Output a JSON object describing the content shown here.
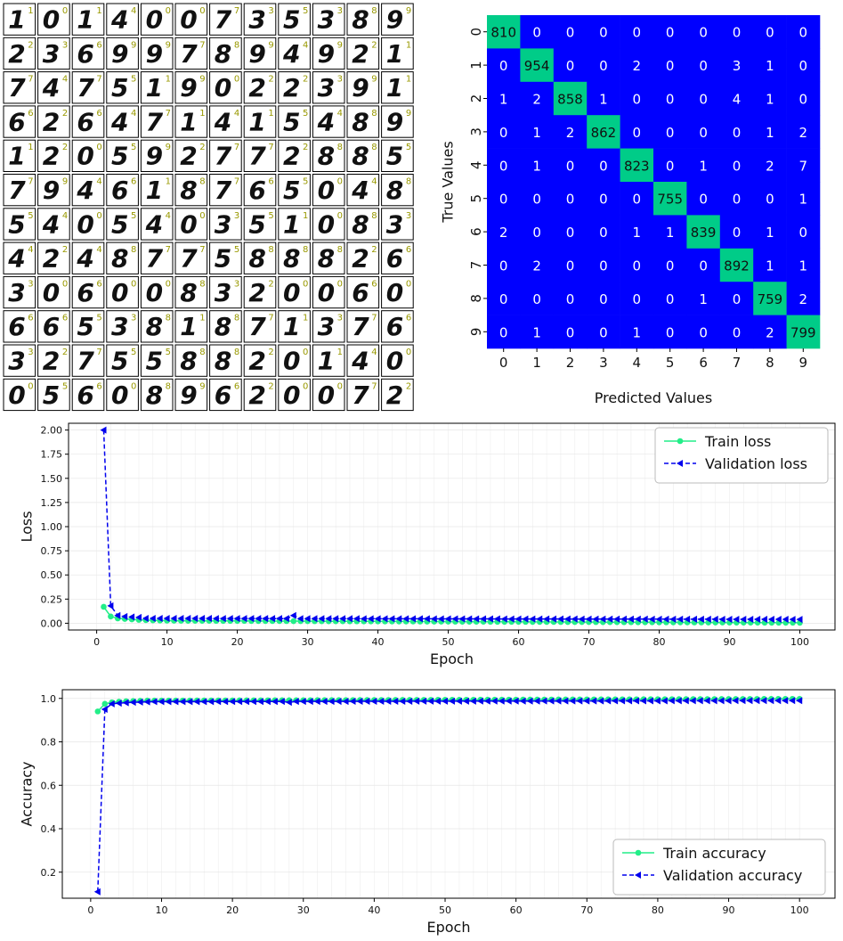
{
  "mnist_samples": {
    "rows": [
      [
        [
          1,
          1
        ],
        [
          0,
          0
        ],
        [
          1,
          1
        ],
        [
          4,
          4
        ],
        [
          0,
          0
        ],
        [
          0,
          0
        ],
        [
          7,
          7
        ],
        [
          3,
          3
        ],
        [
          5,
          5
        ],
        [
          3,
          3
        ],
        [
          8,
          8
        ],
        [
          9,
          9
        ]
      ],
      [
        [
          2,
          2
        ],
        [
          3,
          3
        ],
        [
          6,
          6
        ],
        [
          9,
          9
        ],
        [
          9,
          9
        ],
        [
          7,
          7
        ],
        [
          8,
          8
        ],
        [
          9,
          9
        ],
        [
          4,
          4
        ],
        [
          9,
          9
        ],
        [
          2,
          2
        ],
        [
          1,
          1
        ]
      ],
      [
        [
          7,
          7
        ],
        [
          4,
          4
        ],
        [
          7,
          7
        ],
        [
          5,
          5
        ],
        [
          1,
          1
        ],
        [
          9,
          9
        ],
        [
          0,
          0
        ],
        [
          2,
          2
        ],
        [
          2,
          2
        ],
        [
          3,
          3
        ],
        [
          9,
          9
        ],
        [
          1,
          1
        ]
      ],
      [
        [
          6,
          6
        ],
        [
          2,
          2
        ],
        [
          6,
          6
        ],
        [
          4,
          4
        ],
        [
          7,
          7
        ],
        [
          1,
          1
        ],
        [
          4,
          4
        ],
        [
          1,
          1
        ],
        [
          5,
          5
        ],
        [
          4,
          4
        ],
        [
          8,
          8
        ],
        [
          9,
          9
        ]
      ],
      [
        [
          1,
          1
        ],
        [
          2,
          2
        ],
        [
          0,
          0
        ],
        [
          5,
          5
        ],
        [
          9,
          9
        ],
        [
          2,
          2
        ],
        [
          7,
          7
        ],
        [
          7,
          7
        ],
        [
          2,
          2
        ],
        [
          8,
          8
        ],
        [
          8,
          8
        ],
        [
          5,
          5
        ]
      ],
      [
        [
          7,
          7
        ],
        [
          9,
          9
        ],
        [
          4,
          4
        ],
        [
          6,
          6
        ],
        [
          1,
          1
        ],
        [
          8,
          8
        ],
        [
          7,
          7
        ],
        [
          6,
          6
        ],
        [
          5,
          5
        ],
        [
          0,
          0
        ],
        [
          4,
          4
        ],
        [
          8,
          8
        ]
      ],
      [
        [
          5,
          5
        ],
        [
          4,
          4
        ],
        [
          0,
          0
        ],
        [
          5,
          5
        ],
        [
          4,
          4
        ],
        [
          0,
          0
        ],
        [
          3,
          3
        ],
        [
          5,
          5
        ],
        [
          1,
          1
        ],
        [
          0,
          0
        ],
        [
          8,
          8
        ],
        [
          3,
          3
        ]
      ],
      [
        [
          4,
          4
        ],
        [
          2,
          2
        ],
        [
          4,
          4
        ],
        [
          8,
          8
        ],
        [
          7,
          7
        ],
        [
          7,
          7
        ],
        [
          5,
          5
        ],
        [
          8,
          8
        ],
        [
          8,
          8
        ],
        [
          8,
          8
        ],
        [
          2,
          2
        ],
        [
          6,
          6
        ]
      ],
      [
        [
          3,
          3
        ],
        [
          0,
          0
        ],
        [
          6,
          6
        ],
        [
          0,
          0
        ],
        [
          0,
          0
        ],
        [
          8,
          8
        ],
        [
          3,
          3
        ],
        [
          2,
          2
        ],
        [
          0,
          0
        ],
        [
          0,
          0
        ],
        [
          6,
          6
        ],
        [
          0,
          0
        ]
      ],
      [
        [
          6,
          6
        ],
        [
          6,
          6
        ],
        [
          5,
          5
        ],
        [
          3,
          3
        ],
        [
          8,
          8
        ],
        [
          1,
          1
        ],
        [
          8,
          8
        ],
        [
          7,
          7
        ],
        [
          1,
          1
        ],
        [
          3,
          3
        ],
        [
          7,
          7
        ],
        [
          6,
          6
        ]
      ],
      [
        [
          3,
          3
        ],
        [
          2,
          2
        ],
        [
          7,
          7
        ],
        [
          5,
          5
        ],
        [
          5,
          5
        ],
        [
          8,
          8
        ],
        [
          8,
          8
        ],
        [
          2,
          2
        ],
        [
          0,
          0
        ],
        [
          1,
          1
        ],
        [
          4,
          4
        ],
        [
          0,
          0
        ]
      ],
      [
        [
          0,
          0
        ],
        [
          5,
          5
        ],
        [
          6,
          6
        ],
        [
          0,
          0
        ],
        [
          8,
          8
        ],
        [
          9,
          9
        ],
        [
          6,
          6
        ],
        [
          2,
          2
        ],
        [
          0,
          0
        ],
        [
          0,
          0
        ],
        [
          7,
          7
        ],
        [
          2,
          2
        ]
      ]
    ]
  },
  "chart_data": [
    {
      "type": "heatmap",
      "xlabel": "Predicted Values",
      "ylabel": "True Values",
      "x_categories": [
        "0",
        "1",
        "2",
        "3",
        "4",
        "5",
        "6",
        "7",
        "8",
        "9"
      ],
      "y_categories": [
        "0",
        "1",
        "2",
        "3",
        "4",
        "5",
        "6",
        "7",
        "8",
        "9"
      ],
      "matrix": [
        [
          810,
          0,
          0,
          0,
          0,
          0,
          0,
          0,
          0,
          0
        ],
        [
          0,
          954,
          0,
          0,
          2,
          0,
          0,
          3,
          1,
          0
        ],
        [
          1,
          2,
          858,
          1,
          0,
          0,
          0,
          4,
          1,
          0
        ],
        [
          0,
          1,
          2,
          862,
          0,
          0,
          0,
          0,
          1,
          2
        ],
        [
          0,
          1,
          0,
          0,
          823,
          0,
          1,
          0,
          2,
          7
        ],
        [
          0,
          0,
          0,
          0,
          0,
          755,
          0,
          0,
          0,
          1
        ],
        [
          2,
          0,
          0,
          0,
          1,
          1,
          839,
          0,
          1,
          0
        ],
        [
          0,
          2,
          0,
          0,
          0,
          0,
          0,
          892,
          1,
          1
        ],
        [
          0,
          0,
          0,
          0,
          0,
          0,
          1,
          0,
          759,
          2
        ],
        [
          0,
          1,
          0,
          0,
          1,
          0,
          0,
          0,
          2,
          799
        ]
      ],
      "colors": {
        "diagonal": "#00cc88",
        "off_diagonal": "#0000ff"
      }
    },
    {
      "type": "line",
      "xlabel": "Epoch",
      "ylabel": "Loss",
      "xlim": [
        -4,
        105
      ],
      "ylim": [
        -0.07,
        2.07
      ],
      "xticks": [
        0,
        10,
        20,
        30,
        40,
        50,
        60,
        70,
        80,
        90,
        100
      ],
      "yticks": [
        0.0,
        0.25,
        0.5,
        0.75,
        1.0,
        1.25,
        1.5,
        1.75,
        2.0
      ],
      "ytick_labels": [
        "0.00",
        "0.25",
        "0.50",
        "0.75",
        "1.00",
        "1.25",
        "1.50",
        "1.75",
        "2.00"
      ],
      "grid": true,
      "legend_position": "top-right",
      "series": [
        {
          "name": "Train loss",
          "color": "#22ee88",
          "style": "solid",
          "marker": "circle",
          "first_values": [
            0.17,
            0.07,
            0.05,
            0.045,
            0.04,
            0.035,
            0.032,
            0.03,
            0.028,
            0.027
          ],
          "start_epoch": 1,
          "end_epoch": 100,
          "tail_start": 0.026,
          "tail_end": 0.005
        },
        {
          "name": "Validation loss",
          "color": "#0000ee",
          "style": "dashed",
          "marker": "triangle-left",
          "first_values": [
            2.0,
            0.18,
            0.08,
            0.07,
            0.065,
            0.06,
            0.05,
            0.05,
            0.05,
            0.05
          ],
          "start_epoch": 1,
          "end_epoch": 100,
          "tail_start": 0.05,
          "tail_end": 0.04,
          "spikes": [
            [
              28,
              0.08
            ]
          ]
        }
      ]
    },
    {
      "type": "line",
      "xlabel": "Epoch",
      "ylabel": "Accuracy",
      "xlim": [
        -4,
        105
      ],
      "ylim": [
        0.08,
        1.04
      ],
      "xticks": [
        0,
        10,
        20,
        30,
        40,
        50,
        60,
        70,
        80,
        90,
        100
      ],
      "yticks": [
        0.2,
        0.4,
        0.6,
        0.8,
        1.0
      ],
      "ytick_labels": [
        "0.2",
        "0.4",
        "0.6",
        "0.8",
        "1.0"
      ],
      "grid": true,
      "legend_position": "bottom-right",
      "series": [
        {
          "name": "Train accuracy",
          "color": "#22ee88",
          "style": "solid",
          "marker": "circle",
          "first_values": [
            0.94,
            0.975,
            0.982,
            0.985,
            0.987,
            0.988,
            0.989,
            0.99,
            0.99,
            0.99
          ],
          "start_epoch": 1,
          "end_epoch": 100,
          "tail_start": 0.99,
          "tail_end": 0.998
        },
        {
          "name": "Validation accuracy",
          "color": "#0000ee",
          "style": "dashed",
          "marker": "triangle-left",
          "first_values": [
            0.11,
            0.95,
            0.975,
            0.978,
            0.98,
            0.982,
            0.983,
            0.984,
            0.985,
            0.985
          ],
          "start_epoch": 1,
          "end_epoch": 100,
          "tail_start": 0.985,
          "tail_end": 0.99,
          "spikes": [
            [
              28,
              0.982
            ]
          ]
        }
      ]
    }
  ]
}
